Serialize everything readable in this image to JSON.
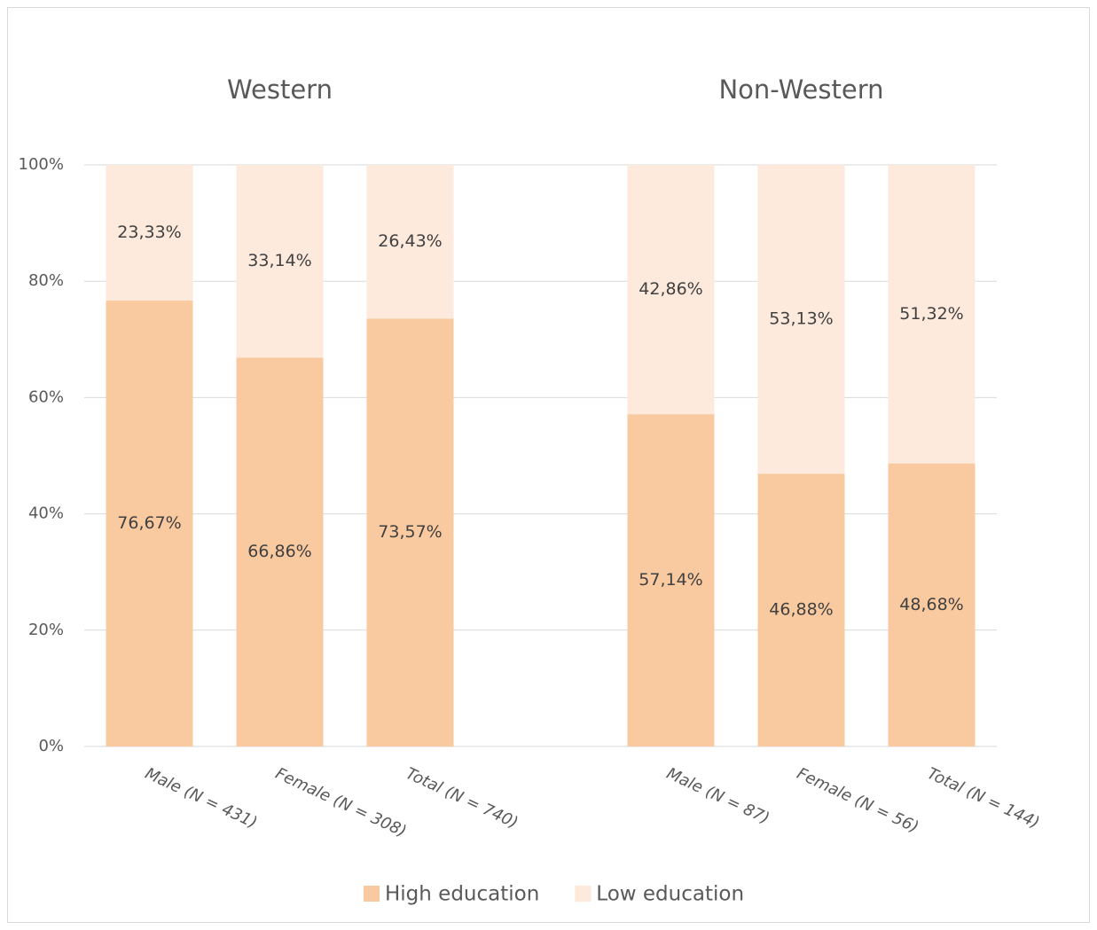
{
  "chart_data": {
    "type": "stacked_bar",
    "group_titles": [
      "Western",
      "Non-Western"
    ],
    "categories": [
      "Male (N = 431)",
      "Female (N = 308)",
      "Total (N = 740)",
      null,
      "Male (N = 87)",
      "Female (N = 56)",
      "Total (N = 144)"
    ],
    "series": [
      {
        "name": "High education",
        "color": "#f9c9a0",
        "values": [
          76.67,
          66.86,
          73.57,
          null,
          57.14,
          46.88,
          48.68
        ],
        "value_labels": [
          "76,67%",
          "66,86%",
          "73,57%",
          null,
          "57,14%",
          "46,88%",
          "48,68%"
        ]
      },
      {
        "name": "Low education",
        "color": "#fdeadc",
        "values": [
          23.33,
          33.14,
          26.43,
          null,
          42.86,
          53.13,
          51.32
        ],
        "value_labels": [
          "23,33%",
          "33,14%",
          "26,43%",
          null,
          "42,86%",
          "53,13%",
          "51,32%"
        ]
      }
    ],
    "ylim": [
      0,
      100
    ],
    "yticks": [
      {
        "value": 0,
        "label": "0%"
      },
      {
        "value": 20,
        "label": "20%"
      },
      {
        "value": 40,
        "label": "40%"
      },
      {
        "value": 60,
        "label": "60%"
      },
      {
        "value": 80,
        "label": "80%"
      },
      {
        "value": 100,
        "label": "100%"
      }
    ],
    "grid": true
  }
}
